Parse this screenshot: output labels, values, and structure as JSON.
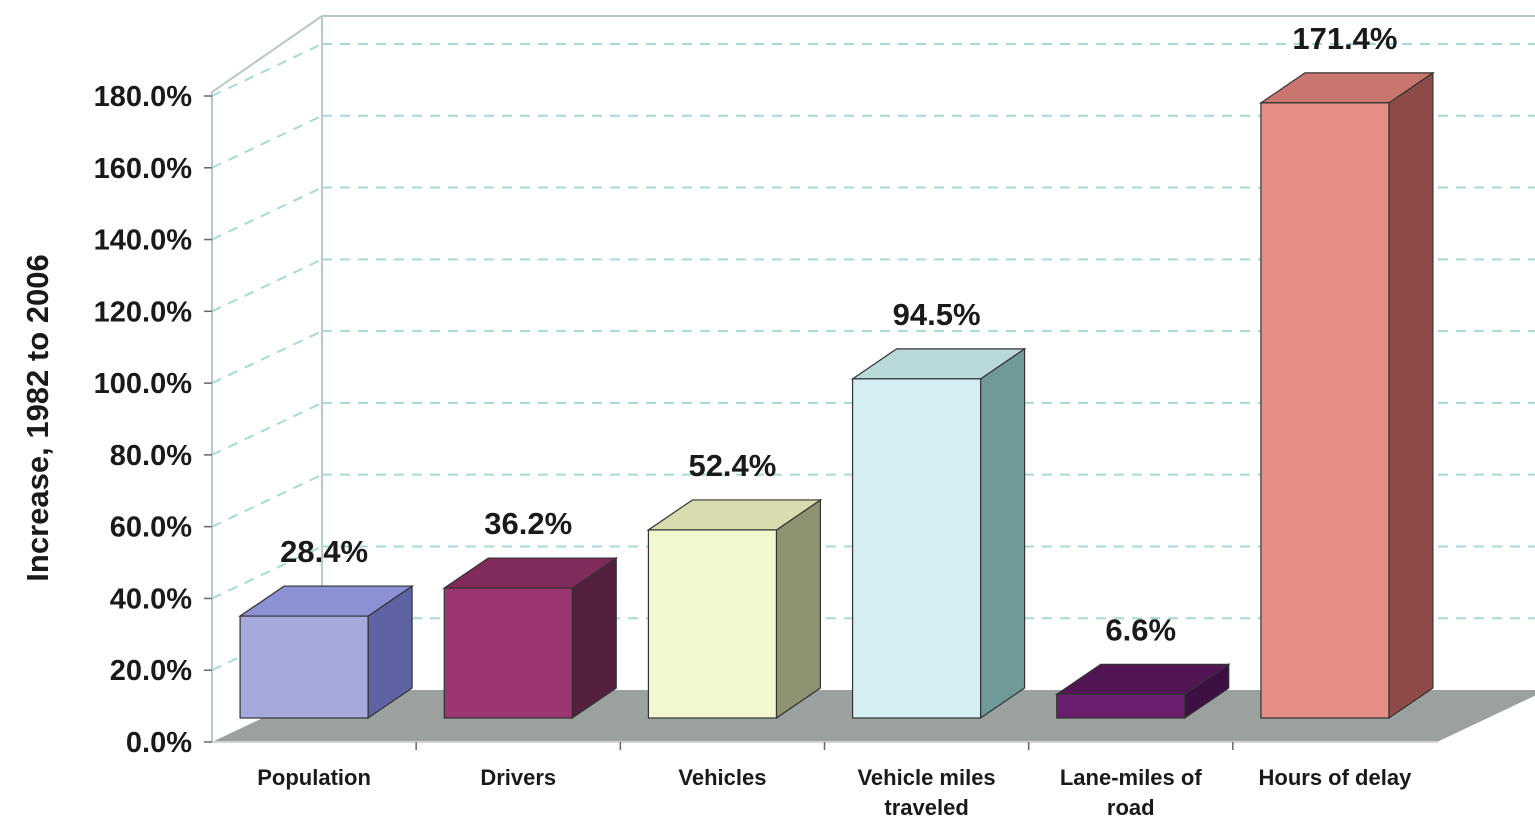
{
  "chart_data": {
    "type": "bar",
    "three_d": true,
    "categories": [
      "Population",
      "Drivers",
      "Vehicles",
      "Vehicle miles traveled",
      "Lane-miles of road",
      "Hours of delay"
    ],
    "category_lines": [
      [
        "Population"
      ],
      [
        "Drivers"
      ],
      [
        "Vehicles"
      ],
      [
        "Vehicle miles",
        "traveled"
      ],
      [
        "Lane-miles of",
        "road"
      ],
      [
        "Hours of delay"
      ]
    ],
    "values": [
      28.4,
      36.2,
      52.4,
      94.5,
      6.6,
      171.4
    ],
    "data_labels": [
      "28.4%",
      "36.2%",
      "52.4%",
      "94.5%",
      "6.6%",
      "171.4%"
    ],
    "ylabel": "Increase, 1982 to 2006",
    "ylim": [
      0,
      180
    ],
    "yticks": [
      "0.0%",
      "20.0%",
      "40.0%",
      "60.0%",
      "80.0%",
      "100.0%",
      "120.0%",
      "140.0%",
      "160.0%",
      "180.0%"
    ],
    "grid": true,
    "legend": "none",
    "colors": {
      "front": [
        "#a5a9dc",
        "#9c3670",
        "#f3f7ce",
        "#d4eff4",
        "#6a1f6e",
        "#e48e86"
      ],
      "top": [
        "#8c91d6",
        "#812a5c",
        "#d8dcae",
        "#b8d8da",
        "#531655",
        "#c9766f"
      ],
      "side": [
        "#5f63a4",
        "#55203f",
        "#8f9270",
        "#6f9a98",
        "#3e0f42",
        "#8e4a47"
      ],
      "floor": "#9aa19f",
      "wall_line": "#b8c8c4",
      "grid": "#a8d8d8"
    }
  }
}
